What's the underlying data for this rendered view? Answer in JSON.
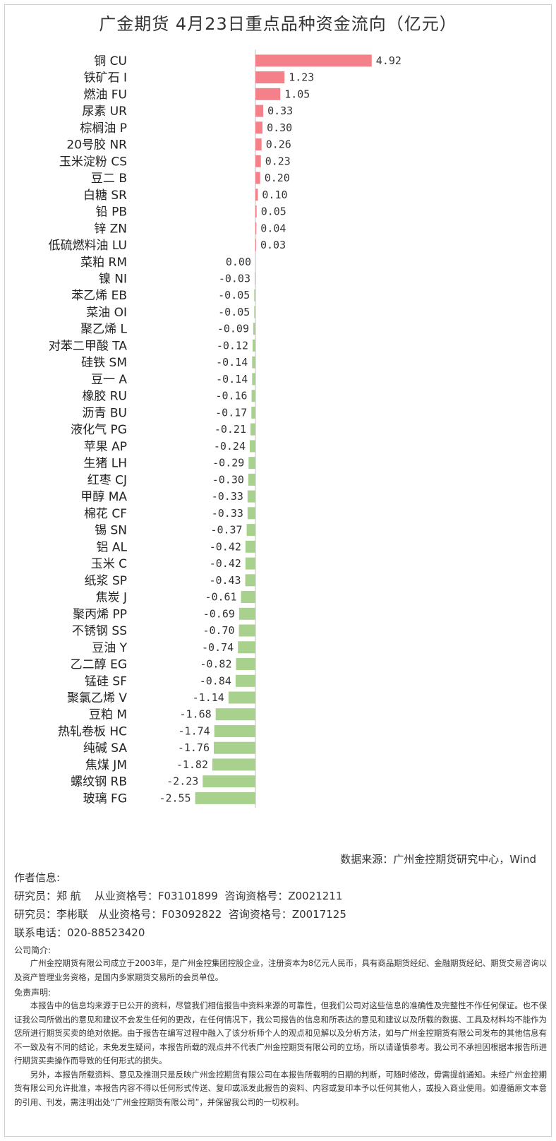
{
  "title": "广金期货 4月23日重点品种资金流向（亿元）",
  "colors": {
    "positive": "#f4808a",
    "negative": "#a9d18e",
    "axis": "#bfbfbf"
  },
  "chart_data": {
    "type": "bar",
    "orientation": "horizontal",
    "categories": [
      "铜 CU",
      "铁矿石 I",
      "燃油 FU",
      "尿素 UR",
      "棕榈油 P",
      "20号胶 NR",
      "玉米淀粉 CS",
      "豆二 B",
      "白糖 SR",
      "铅 PB",
      "锌 ZN",
      "低硫燃料油 LU",
      "菜粕 RM",
      "镍 NI",
      "苯乙烯 EB",
      "菜油 OI",
      "聚乙烯 L",
      "对苯二甲酸 TA",
      "硅铁 SM",
      "豆一 A",
      "橡胶 RU",
      "沥青 BU",
      "液化气 PG",
      "苹果 AP",
      "生猪 LH",
      "红枣 CJ",
      "甲醇 MA",
      "棉花 CF",
      "锡 SN",
      "铝 AL",
      "玉米 C",
      "纸浆 SP",
      "焦炭 J",
      "聚丙烯 PP",
      "不锈钢 SS",
      "豆油 Y",
      "乙二醇 EG",
      "锰硅 SF",
      "聚氯乙烯 V",
      "豆粕 M",
      "热轧卷板 HC",
      "纯碱 SA",
      "焦煤 JM",
      "螺纹钢 RB",
      "玻璃 FG"
    ],
    "values": [
      4.92,
      1.23,
      1.05,
      0.33,
      0.3,
      0.26,
      0.23,
      0.2,
      0.1,
      0.05,
      0.04,
      0.03,
      0.0,
      -0.03,
      -0.05,
      -0.05,
      -0.09,
      -0.12,
      -0.14,
      -0.14,
      -0.16,
      -0.17,
      -0.21,
      -0.24,
      -0.29,
      -0.3,
      -0.33,
      -0.33,
      -0.37,
      -0.42,
      -0.42,
      -0.43,
      -0.61,
      -0.69,
      -0.7,
      -0.74,
      -0.82,
      -0.84,
      -1.14,
      -1.68,
      -1.74,
      -1.76,
      -1.82,
      -2.23,
      -2.55
    ],
    "value_labels": [
      "4.92",
      "1.23",
      "1.05",
      "0.33",
      "0.30",
      "0.26",
      "0.23",
      "0.20",
      "0.10",
      "0.05",
      "0.04",
      "0.03",
      "0.00",
      "-0.03",
      "-0.05",
      "-0.05",
      "-0.09",
      "-0.12",
      "-0.14",
      "-0.14",
      "-0.16",
      "-0.17",
      "-0.21",
      "-0.24",
      "-0.29",
      "-0.30",
      "-0.33",
      "-0.33",
      "-0.37",
      "-0.42",
      "-0.42",
      "-0.43",
      "-0.61",
      "-0.69",
      "-0.70",
      "-0.74",
      "-0.82",
      "-0.84",
      "-1.14",
      "-1.68",
      "-1.74",
      "-1.76",
      "-1.82",
      "-2.23",
      "-2.55"
    ],
    "xlim": [
      -2.55,
      4.92
    ],
    "grid": false,
    "legend": "none"
  },
  "source": "数据来源：广州金控期货研究中心，Wind",
  "author": {
    "heading": "作者信息:",
    "lines": [
      "研究员：郑 航    从业资格号：F03101899  咨询资格号：Z0021211",
      "研究员：李彬联   从业资格号：F03092822  咨询资格号：Z0017125"
    ],
    "phone": "联系电话：020-88523420"
  },
  "company": {
    "heading": "公司简介:",
    "text": "广州金控期货有限公司成立于2003年，是广州金控集团控股企业，注册资本为8亿元人民币，具有商品期货经纪、金融期货经纪、期货交易咨询以及资产管理业务资格，是国内多家期货交易所的会员单位。"
  },
  "disclaimer": {
    "heading": "免责声明:",
    "p1": "本报告中的信息均来源于已公开的资料，尽管我们相信报告中资料来源的可靠性，但我们公司对这些信息的准确性及完整性不作任何保证。也不保证我公司所做出的意见和建议不会发生任何的更改，在任何情况下，我公司报告的信息和所表达的意见和建议以及所载的数据、工具及材料均不能作为您所进行期货买卖的绝对依据。由于报告在编写过程中融入了该分析师个人的观点和见解以及分析方法，如与广州金控期货有限公司发布的其他信息有不一致及有不同的结论，未免发生疑问，本报告所载的观点并不代表广州金控期货有限公司的立场，所以请谨慎参考。我公司不承担因根据本报告所进行期货买卖操作而导致的任何形式的损失。",
    "p2": "另外，本报告所载资料、意见及推测只是反映广州金控期货有限公司在本报告所载明的日期的判断，可随时修改，毋需提前通知。未经广州金控期货有限公司允许批准，本报告内容不得以任何形式传送、复印或派发此报告的资料、内容或复印本予以任何其他人，或投入商业使用。如遵循原文本意的引用、刊发，需注明出处“广州金控期货有限公司”，并保留我公司的一切权利。"
  }
}
